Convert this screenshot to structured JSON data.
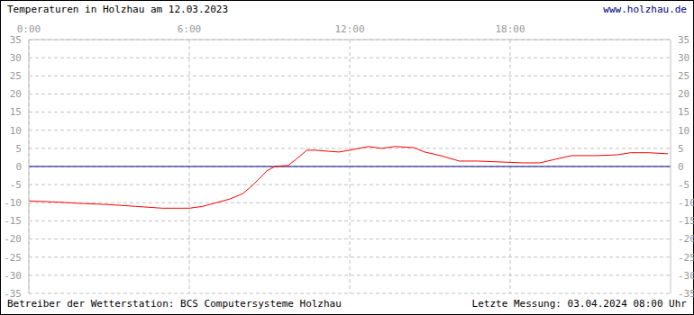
{
  "chart_data": {
    "type": "line",
    "title": "Temperaturen in Holzhau am 12.03.2023",
    "subtitle": "www.holzhau.de",
    "annotations": [
      "Betreiber der Wetterstation: BCS Computersysteme Holzhau",
      "Letzte Messung: 03.04.2024 08:00 Uhr"
    ],
    "x": [
      0,
      1,
      2,
      3,
      4,
      5,
      6,
      6.5,
      7,
      7.5,
      8,
      8.4,
      8.9,
      9.2,
      9.7,
      10,
      10.4,
      10.7,
      11.2,
      11.6,
      12,
      12.7,
      13.2,
      13.7,
      14.4,
      14.8,
      15.4,
      16.1,
      16.8,
      17.8,
      18.5,
      19.1,
      19.7,
      20.3,
      21.2,
      22,
      22.5,
      23.2,
      23.9
    ],
    "series": [
      {
        "name": "Temperatur",
        "color": "#ff0000",
        "values": [
          -9.5,
          -9.8,
          -10.2,
          -10.5,
          -11,
          -11.5,
          -11.5,
          -11,
          -10,
          -9,
          -7.5,
          -5,
          -1.2,
          0,
          0.3,
          2,
          4.5,
          4.5,
          4.2,
          4,
          4.5,
          5.5,
          5,
          5.5,
          5.2,
          4,
          3,
          1.5,
          1.5,
          1.2,
          1,
          1,
          2,
          3,
          3,
          3.2,
          3.8,
          3.8,
          3.5
        ]
      }
    ],
    "xlim": [
      0,
      24
    ],
    "xticks": [
      {
        "value": 0,
        "label": "0:00"
      },
      {
        "value": 6,
        "label": "6:00"
      },
      {
        "value": 12,
        "label": "12:00"
      },
      {
        "value": 18,
        "label": "18:00"
      }
    ],
    "ylim": [
      -35,
      35
    ],
    "yticks": [
      -35,
      -30,
      -25,
      -20,
      -15,
      -10,
      -5,
      0,
      5,
      10,
      15,
      20,
      25,
      30,
      35
    ],
    "grid": true
  }
}
